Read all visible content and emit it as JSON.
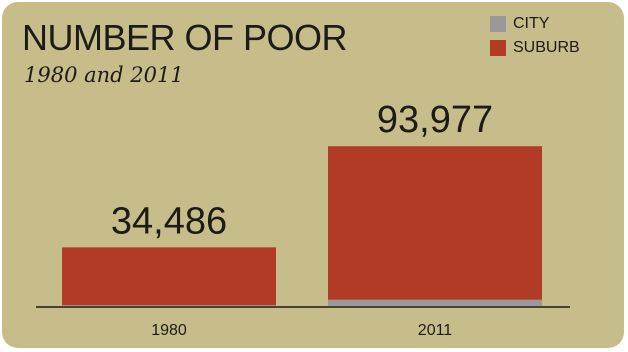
{
  "card": {
    "background": "#c7bd8b"
  },
  "title": "NUMBER OF POOR",
  "subtitle": "1980 and 2011",
  "legend": [
    {
      "key": "city",
      "label": "CITY",
      "color": "#999999"
    },
    {
      "key": "suburb",
      "label": "SUBURB",
      "color": "#b23b27"
    }
  ],
  "chart_data": {
    "type": "bar",
    "stacked": true,
    "categories": [
      "1980",
      "2011"
    ],
    "totals_labels": [
      "34,486",
      "93,977"
    ],
    "series": [
      {
        "name": "CITY",
        "key": "city",
        "values": [
          500,
          3700
        ],
        "color": "#999999"
      },
      {
        "name": "SUBURB",
        "key": "suburb",
        "values": [
          33986,
          90277
        ],
        "color": "#b23b27"
      }
    ],
    "ylim": [
      0,
      100000
    ],
    "grid": false,
    "legend_position": "top-right",
    "axis_color": "#1d1b16",
    "text_color": "#1d1b16"
  }
}
